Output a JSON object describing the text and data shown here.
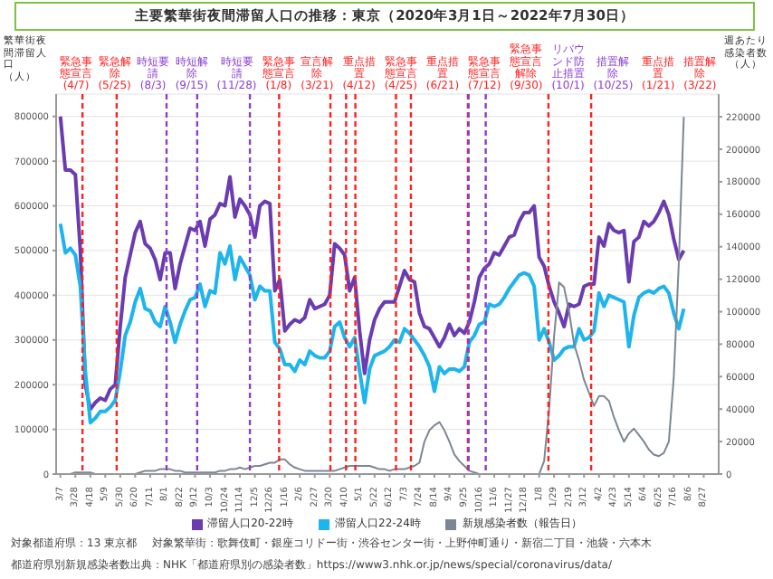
{
  "chart_data": {
    "type": "line",
    "title": "主要繁華街夜間滞留人口の推移：東京（2020年3月1日～2022年7月30日）",
    "ylabel": "繁華街夜間滞留人口（人）",
    "y2label": "週あたり感染者数（人）",
    "x": [
      "2020-03-07",
      "2020-03-14",
      "2020-03-21",
      "2020-03-28",
      "2020-04-04",
      "2020-04-11",
      "2020-04-18",
      "2020-04-25",
      "2020-05-02",
      "2020-05-09",
      "2020-05-16",
      "2020-05-23",
      "2020-05-30",
      "2020-06-06",
      "2020-06-13",
      "2020-06-20",
      "2020-06-27",
      "2020-07-04",
      "2020-07-11",
      "2020-07-18",
      "2020-07-25",
      "2020-08-01",
      "2020-08-08",
      "2020-08-15",
      "2020-08-22",
      "2020-08-29",
      "2020-09-05",
      "2020-09-12",
      "2020-09-19",
      "2020-09-26",
      "2020-10-03",
      "2020-10-10",
      "2020-10-17",
      "2020-10-24",
      "2020-10-31",
      "2020-11-07",
      "2020-11-14",
      "2020-11-21",
      "2020-11-28",
      "2020-12-05",
      "2020-12-12",
      "2020-12-19",
      "2020-12-26",
      "2021-01-02",
      "2021-01-09",
      "2021-01-16",
      "2021-01-23",
      "2021-01-30",
      "2021-02-06",
      "2021-02-13",
      "2021-02-20",
      "2021-02-27",
      "2021-03-06",
      "2021-03-13",
      "2021-03-20",
      "2021-03-27",
      "2021-04-03",
      "2021-04-10",
      "2021-04-17",
      "2021-04-24",
      "2021-05-01",
      "2021-05-08",
      "2021-05-15",
      "2021-05-22",
      "2021-05-29",
      "2021-06-05",
      "2021-06-12",
      "2021-06-19",
      "2021-06-26",
      "2021-07-03",
      "2021-07-10",
      "2021-07-17",
      "2021-07-24",
      "2021-07-31",
      "2021-08-07",
      "2021-08-14",
      "2021-08-21",
      "2021-08-28",
      "2021-09-04",
      "2021-09-11",
      "2021-09-18",
      "2021-09-25",
      "2021-10-02",
      "2021-10-09",
      "2021-10-16",
      "2021-10-23",
      "2021-10-30",
      "2021-11-06",
      "2021-11-13",
      "2021-11-20",
      "2021-11-27",
      "2021-12-04",
      "2021-12-11",
      "2021-12-18",
      "2021-12-25",
      "2022-01-01",
      "2022-01-08",
      "2022-01-15",
      "2022-01-22",
      "2022-01-29",
      "2022-02-05",
      "2022-02-12",
      "2022-02-19",
      "2022-02-26",
      "2022-03-05",
      "2022-03-12",
      "2022-03-19",
      "2022-03-26",
      "2022-04-02",
      "2022-04-09",
      "2022-04-16",
      "2022-04-23",
      "2022-04-30",
      "2022-05-07",
      "2022-05-14",
      "2022-05-21",
      "2022-05-28",
      "2022-06-04",
      "2022-06-11",
      "2022-06-18",
      "2022-06-25",
      "2022-07-02",
      "2022-07-09",
      "2022-07-16",
      "2022-07-23",
      "2022-07-30"
    ],
    "series": [
      {
        "name": "滞留人口20-22時",
        "color": "#6a3cb0",
        "values": [
          800000,
          680000,
          680000,
          670000,
          500000,
          200000,
          145000,
          160000,
          170000,
          165000,
          190000,
          200000,
          330000,
          440000,
          490000,
          540000,
          565000,
          515000,
          505000,
          480000,
          435000,
          495000,
          495000,
          415000,
          470000,
          510000,
          550000,
          545000,
          565000,
          510000,
          570000,
          580000,
          605000,
          600000,
          665000,
          575000,
          615000,
          600000,
          580000,
          530000,
          600000,
          610000,
          605000,
          410000,
          435000,
          320000,
          335000,
          345000,
          340000,
          350000,
          390000,
          370000,
          375000,
          380000,
          400000,
          515000,
          505000,
          490000,
          410000,
          440000,
          320000,
          225000,
          300000,
          345000,
          370000,
          385000,
          385000,
          385000,
          420000,
          455000,
          435000,
          430000,
          360000,
          330000,
          325000,
          305000,
          285000,
          305000,
          335000,
          310000,
          325000,
          315000,
          340000,
          385000,
          440000,
          460000,
          470000,
          495000,
          490000,
          510000,
          530000,
          535000,
          565000,
          585000,
          585000,
          600000,
          485000,
          465000,
          420000,
          385000,
          360000,
          330000,
          380000,
          375000,
          380000,
          420000,
          425000,
          425000,
          530000,
          510000,
          560000,
          545000,
          540000,
          545000,
          430000,
          520000,
          530000,
          565000,
          555000,
          565000,
          585000,
          610000,
          580000,
          525000,
          480000,
          500000
        ]
      },
      {
        "name": "滞留人口22-24時",
        "color": "#1eb4ec",
        "values": [
          560000,
          495000,
          505000,
          490000,
          420000,
          230000,
          115000,
          125000,
          140000,
          140000,
          150000,
          165000,
          230000,
          310000,
          340000,
          385000,
          415000,
          370000,
          365000,
          340000,
          330000,
          375000,
          340000,
          295000,
          335000,
          365000,
          390000,
          395000,
          425000,
          375000,
          410000,
          405000,
          495000,
          470000,
          510000,
          435000,
          485000,
          465000,
          445000,
          390000,
          420000,
          410000,
          410000,
          295000,
          280000,
          245000,
          245000,
          230000,
          255000,
          245000,
          275000,
          265000,
          260000,
          260000,
          275000,
          330000,
          340000,
          305000,
          285000,
          305000,
          230000,
          160000,
          235000,
          265000,
          270000,
          275000,
          285000,
          300000,
          295000,
          325000,
          315000,
          300000,
          285000,
          265000,
          240000,
          185000,
          240000,
          225000,
          235000,
          235000,
          230000,
          240000,
          295000,
          310000,
          335000,
          340000,
          380000,
          375000,
          380000,
          395000,
          415000,
          430000,
          445000,
          450000,
          445000,
          420000,
          300000,
          325000,
          295000,
          255000,
          265000,
          280000,
          285000,
          285000,
          325000,
          300000,
          305000,
          320000,
          405000,
          375000,
          400000,
          395000,
          390000,
          385000,
          285000,
          355000,
          395000,
          405000,
          410000,
          405000,
          415000,
          420000,
          405000,
          360000,
          325000,
          370000
        ]
      },
      {
        "name": "新規感染者数（報告日）",
        "color": "#7d8793",
        "axis": "y2",
        "values": [
          0,
          0,
          0,
          1000,
          1000,
          1000,
          1000,
          0,
          0,
          0,
          0,
          0,
          0,
          0,
          0,
          0,
          1000,
          2000,
          2000,
          2000,
          3000,
          3000,
          3000,
          2000,
          2000,
          1000,
          1000,
          1000,
          1000,
          1000,
          1000,
          1000,
          2000,
          2000,
          3000,
          3000,
          4000,
          3000,
          4000,
          5000,
          5000,
          6000,
          7000,
          7000,
          9000,
          9000,
          6000,
          4000,
          3000,
          2000,
          2000,
          2000,
          2000,
          2000,
          2000,
          2000,
          3000,
          4000,
          5000,
          5000,
          5000,
          5000,
          5000,
          4000,
          3000,
          3000,
          2000,
          3000,
          3000,
          3000,
          4000,
          5000,
          7000,
          20000,
          27000,
          30000,
          32000,
          27000,
          20000,
          12000,
          8000,
          5000,
          2000,
          1000,
          0,
          0,
          0,
          0,
          0,
          0,
          0,
          0,
          0,
          0,
          0,
          0,
          0,
          8000,
          40000,
          85000,
          118000,
          115000,
          100000,
          80000,
          70000,
          58000,
          50000,
          42000,
          48000,
          48000,
          45000,
          35000,
          27000,
          20000,
          25000,
          28000,
          24000,
          20000,
          15000,
          12000,
          11000,
          13000,
          20000,
          60000,
          130000,
          220000
        ]
      }
    ],
    "xlim": [
      "2020-03-01",
      "2022-09-17"
    ],
    "xticks": [
      {
        "value": "2020-03-07",
        "label": "3/7"
      },
      {
        "value": "2020-03-28",
        "label": "3/28"
      },
      {
        "value": "2020-04-18",
        "label": "4/18"
      },
      {
        "value": "2020-05-09",
        "label": "5/9"
      },
      {
        "value": "2020-05-30",
        "label": "5/30"
      },
      {
        "value": "2020-06-20",
        "label": "6/20"
      },
      {
        "value": "2020-07-11",
        "label": "7/11"
      },
      {
        "value": "2020-08-01",
        "label": "8/1"
      },
      {
        "value": "2020-08-22",
        "label": "8/22"
      },
      {
        "value": "2020-09-12",
        "label": "9/12"
      },
      {
        "value": "2020-10-03",
        "label": "10/3"
      },
      {
        "value": "2020-10-24",
        "label": "10/24"
      },
      {
        "value": "2020-11-14",
        "label": "11/14"
      },
      {
        "value": "2020-12-05",
        "label": "12/5"
      },
      {
        "value": "2020-12-26",
        "label": "12/26"
      },
      {
        "value": "2021-01-16",
        "label": "1/16"
      },
      {
        "value": "2021-02-06",
        "label": "2/6"
      },
      {
        "value": "2021-02-27",
        "label": "2/27"
      },
      {
        "value": "2021-03-20",
        "label": "3/20"
      },
      {
        "value": "2021-04-10",
        "label": "4/10"
      },
      {
        "value": "2021-05-01",
        "label": "5/1"
      },
      {
        "value": "2021-05-22",
        "label": "5/22"
      },
      {
        "value": "2021-06-12",
        "label": "6/12"
      },
      {
        "value": "2021-07-03",
        "label": "7/3"
      },
      {
        "value": "2021-07-24",
        "label": "7/24"
      },
      {
        "value": "2021-08-14",
        "label": "8/14"
      },
      {
        "value": "2021-09-04",
        "label": "9/4"
      },
      {
        "value": "2021-09-25",
        "label": "9/25"
      },
      {
        "value": "2021-10-16",
        "label": "10/16"
      },
      {
        "value": "2021-11-06",
        "label": "11/6"
      },
      {
        "value": "2021-11-27",
        "label": "11/27"
      },
      {
        "value": "2021-12-18",
        "label": "12/18"
      },
      {
        "value": "2022-01-08",
        "label": "1/8"
      },
      {
        "value": "2022-01-29",
        "label": "1/29"
      },
      {
        "value": "2022-02-19",
        "label": "2/19"
      },
      {
        "value": "2022-03-12",
        "label": "3/12"
      },
      {
        "value": "2022-04-02",
        "label": "4/2"
      },
      {
        "value": "2022-04-23",
        "label": "4/23"
      },
      {
        "value": "2022-05-14",
        "label": "5/14"
      },
      {
        "value": "2022-06-04",
        "label": "6/4"
      },
      {
        "value": "2022-06-25",
        "label": "6/25"
      },
      {
        "value": "2022-07-16",
        "label": "7/16"
      },
      {
        "value": "2022-08-06",
        "label": "8/6"
      },
      {
        "value": "2022-08-27",
        "label": "8/27"
      }
    ],
    "ylim": [
      0,
      850000
    ],
    "yticks": [
      0,
      100000,
      200000,
      300000,
      400000,
      500000,
      600000,
      700000,
      800000
    ],
    "y2lim": [
      0,
      234000
    ],
    "y2ticks": [
      0,
      20000,
      40000,
      60000,
      80000,
      100000,
      120000,
      140000,
      160000,
      180000,
      200000,
      220000
    ],
    "grid": "y",
    "legend": "bottom",
    "ref_lines": [
      {
        "axis": "x",
        "value": "2020-04-07",
        "label": "緊急事態宣言(4/7)",
        "color": "#ff2020",
        "line_style": "dashed"
      },
      {
        "axis": "x",
        "value": "2020-05-25",
        "label": "緊急解除(5/25)",
        "color": "#ff2020",
        "line_style": "dashed"
      },
      {
        "axis": "x",
        "value": "2020-08-03",
        "label": "時短要請(8/3)",
        "color": "#8a3fd0",
        "line_style": "dashed"
      },
      {
        "axis": "x",
        "value": "2020-09-15",
        "label": "時短解除(9/15)",
        "color": "#8a3fd0",
        "line_style": "dashed"
      },
      {
        "axis": "x",
        "value": "2020-11-28",
        "label": "時短要請(11/28)",
        "color": "#8a3fd0",
        "line_style": "dashed"
      },
      {
        "axis": "x",
        "value": "2021-01-08",
        "label": "緊急事態宣言(1/8)",
        "color": "#ff2020",
        "line_style": "dashed"
      },
      {
        "axis": "x",
        "value": "2021-03-21",
        "label": "宣言解除(3/21)",
        "color": "#ff2020",
        "line_style": "dashed"
      },
      {
        "axis": "x",
        "value": "2021-04-12",
        "label": "重点措置(4/12)",
        "color": "#ff2020",
        "line_style": "dashed"
      },
      {
        "axis": "x",
        "value": "2021-04-25",
        "label": "緊急事態宣言(4/25)",
        "color": "#ff2020",
        "line_style": "dashed"
      },
      {
        "axis": "x",
        "value": "2021-06-21",
        "label": "重点措置(6/21)",
        "color": "#ff2020",
        "line_style": "dashed"
      },
      {
        "axis": "x",
        "value": "2021-07-12",
        "label": "緊急事態宣言(7/12)",
        "color": "#ff2020",
        "line_style": "dashed"
      },
      {
        "axis": "x",
        "value": "2021-09-30",
        "label": "緊急事態宣言解除(9/30)",
        "color": "#ff2020",
        "line_style": "dashed"
      },
      {
        "axis": "x",
        "value": "2021-10-01",
        "label": "リバウンド防止措置(10/1)",
        "color": "#8a3fd0",
        "line_style": "dashed"
      },
      {
        "axis": "x",
        "value": "2021-10-25",
        "label": "措置解除(10/25)",
        "color": "#8a3fd0",
        "line_style": "dashed"
      },
      {
        "axis": "x",
        "value": "2022-01-21",
        "label": "重点措置(1/21)",
        "color": "#ff2020",
        "line_style": "dashed"
      },
      {
        "axis": "x",
        "value": "2022-03-22",
        "label": "措置解除(3/22)",
        "color": "#ff2020",
        "line_style": "dashed"
      }
    ],
    "annotations": [
      "対象都道府県：13 東京都",
      "対象繁華街：歌舞伎町・銀座コリドー街・渋谷センター街・上野仲町通り・新宿二丁目・池袋・六本木",
      "都道府県別新規感染者数出典：NHK「都道府県別の感染者数」https://www3.nhk.or.jp/news/special/coronavirus/data/"
    ]
  }
}
